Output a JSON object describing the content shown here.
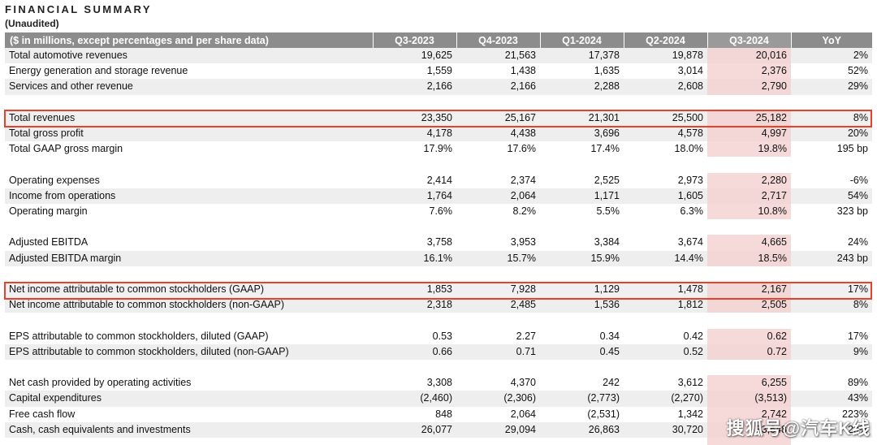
{
  "title": "FINANCIAL SUMMARY",
  "subtitle": "(Unaudited)",
  "header": {
    "label": "($ in millions, except percentages and per share data)",
    "columns": [
      "Q3-2023",
      "Q4-2023",
      "Q1-2024",
      "Q2-2024",
      "Q3-2024",
      "YoY"
    ]
  },
  "colors": {
    "header_bg": "#8c8c8c",
    "highlight_col": "#f6dada",
    "box": "#e8402a"
  },
  "rows": [
    {
      "label": "Total automotive revenues",
      "values": [
        "19,625",
        "21,563",
        "17,378",
        "19,878",
        "20,016",
        "2%"
      ]
    },
    {
      "label": "Energy generation and storage revenue",
      "values": [
        "1,559",
        "1,438",
        "1,635",
        "3,014",
        "2,376",
        "52%"
      ]
    },
    {
      "label": "Services and other revenue",
      "values": [
        "2,166",
        "2,166",
        "2,288",
        "2,608",
        "2,790",
        "29%"
      ]
    },
    {
      "label": "",
      "values": [
        "",
        "",
        "",
        "",
        "",
        ""
      ]
    },
    {
      "label": "Total revenues",
      "values": [
        "23,350",
        "25,167",
        "21,301",
        "25,500",
        "25,182",
        "8%"
      ]
    },
    {
      "label": "Total gross profit",
      "values": [
        "4,178",
        "4,438",
        "3,696",
        "4,578",
        "4,997",
        "20%"
      ]
    },
    {
      "label": "Total GAAP gross margin",
      "values": [
        "17.9%",
        "17.6%",
        "17.4%",
        "18.0%",
        "19.8%",
        "195 bp"
      ]
    },
    {
      "label": "",
      "values": [
        "",
        "",
        "",
        "",
        "",
        ""
      ]
    },
    {
      "label": "Operating expenses",
      "values": [
        "2,414",
        "2,374",
        "2,525",
        "2,973",
        "2,280",
        "-6%"
      ]
    },
    {
      "label": "Income from operations",
      "values": [
        "1,764",
        "2,064",
        "1,171",
        "1,605",
        "2,717",
        "54%"
      ]
    },
    {
      "label": "Operating margin",
      "values": [
        "7.6%",
        "8.2%",
        "5.5%",
        "6.3%",
        "10.8%",
        "323 bp"
      ]
    },
    {
      "label": "",
      "values": [
        "",
        "",
        "",
        "",
        "",
        ""
      ]
    },
    {
      "label": "Adjusted EBITDA",
      "values": [
        "3,758",
        "3,953",
        "3,384",
        "3,674",
        "4,665",
        "24%"
      ]
    },
    {
      "label": "Adjusted EBITDA margin",
      "values": [
        "16.1%",
        "15.7%",
        "15.9%",
        "14.4%",
        "18.5%",
        "243 bp"
      ]
    },
    {
      "label": "",
      "values": [
        "",
        "",
        "",
        "",
        "",
        ""
      ]
    },
    {
      "label": "Net income attributable to common stockholders (GAAP)",
      "values": [
        "1,853",
        "7,928",
        "1,129",
        "1,478",
        "2,167",
        "17%"
      ]
    },
    {
      "label": "Net income attributable to common stockholders (non-GAAP)",
      "values": [
        "2,318",
        "2,485",
        "1,536",
        "1,812",
        "2,505",
        "8%"
      ]
    },
    {
      "label": "",
      "values": [
        "",
        "",
        "",
        "",
        "",
        ""
      ]
    },
    {
      "label": "EPS attributable to common stockholders, diluted (GAAP)",
      "values": [
        "0.53",
        "2.27",
        "0.34",
        "0.42",
        "0.62",
        "17%"
      ]
    },
    {
      "label": "EPS attributable to common stockholders, diluted (non-GAAP)",
      "values": [
        "0.66",
        "0.71",
        "0.45",
        "0.52",
        "0.72",
        "9%"
      ]
    },
    {
      "label": "",
      "values": [
        "",
        "",
        "",
        "",
        "",
        ""
      ]
    },
    {
      "label": "Net cash provided by operating activities",
      "values": [
        "3,308",
        "4,370",
        "242",
        "3,612",
        "6,255",
        "89%"
      ]
    },
    {
      "label": "Capital expenditures",
      "values": [
        "(2,460)",
        "(2,306)",
        "(2,773)",
        "(2,270)",
        "(3,513)",
        "43%"
      ]
    },
    {
      "label": "Free cash flow",
      "values": [
        "848",
        "2,064",
        "(2,531)",
        "1,342",
        "2,742",
        "223%"
      ]
    },
    {
      "label": "Cash, cash equivalents and investments",
      "values": [
        "26,077",
        "29,094",
        "26,863",
        "30,720",
        "33,648",
        "29%"
      ]
    }
  ],
  "watermark": "搜狐号@汽车K线"
}
